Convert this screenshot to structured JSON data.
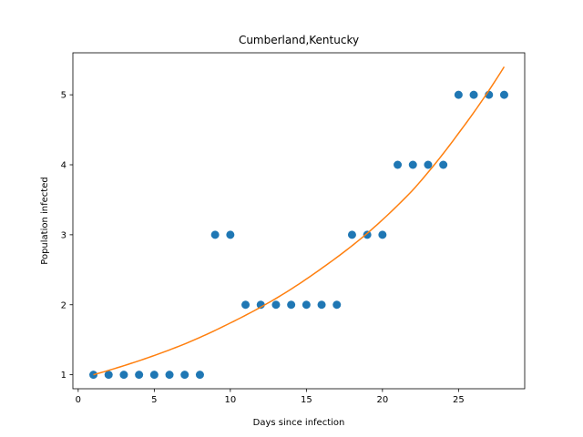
{
  "chart_data": {
    "type": "scatter",
    "title": "Cumberland,Kentucky",
    "xlabel": "Days since infection",
    "ylabel": "Population infected",
    "xlim": [
      -0.35,
      29.35
    ],
    "ylim": [
      0.8,
      5.6
    ],
    "xticks": [
      0,
      5,
      10,
      15,
      20,
      25
    ],
    "yticks": [
      1,
      2,
      3,
      4,
      5
    ],
    "grid": false,
    "series": [
      {
        "kind": "points",
        "color": "#1f77b4",
        "x": [
          1,
          2,
          3,
          4,
          5,
          6,
          7,
          8,
          9,
          10,
          11,
          12,
          13,
          14,
          15,
          16,
          17,
          18,
          19,
          20,
          21,
          22,
          23,
          24,
          25,
          26,
          27,
          28
        ],
        "y": [
          1,
          1,
          1,
          1,
          1,
          1,
          1,
          1,
          3,
          3,
          2,
          2,
          2,
          2,
          2,
          2,
          2,
          3,
          3,
          3,
          4,
          4,
          4,
          4,
          5,
          5,
          5,
          5
        ]
      },
      {
        "kind": "fit",
        "color": "#ff7f0e",
        "x": [
          1,
          4,
          7,
          10,
          13,
          16,
          19,
          22,
          25,
          28
        ],
        "y": [
          1.0,
          1.2,
          1.44,
          1.74,
          2.09,
          2.52,
          3.02,
          3.64,
          4.45,
          5.4
        ]
      }
    ]
  }
}
